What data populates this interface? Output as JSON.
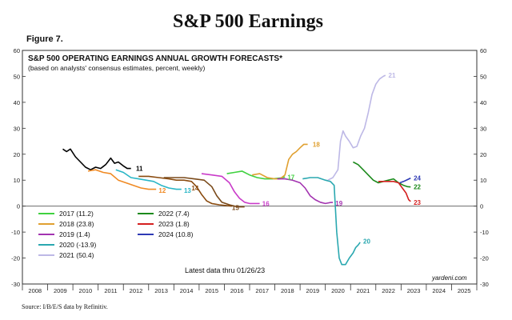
{
  "page": {
    "title": "S&P 500 Earnings",
    "figure_label": "Figure 7.",
    "source": "Source: I/B/E/S data by Refinitiv."
  },
  "chart_data": {
    "type": "line",
    "title": "S&P 500 OPERATING EARNINGS ANNUAL GROWTH FORECASTS*",
    "subtitle": "(based on analysts' consensus estimates, percent, weekly)",
    "annotation": "Latest data thru 01/26/23",
    "brand": "yardeni.com",
    "xlim": [
      2007.5,
      2025.5
    ],
    "ylim": [
      -30,
      60
    ],
    "y_ticks": [
      -30,
      -20,
      -10,
      0,
      10,
      20,
      30,
      40,
      50,
      60
    ],
    "x_ticks": [
      2008,
      2009,
      2010,
      2011,
      2012,
      2013,
      2014,
      2015,
      2016,
      2017,
      2018,
      2019,
      2020,
      2021,
      2022,
      2023,
      2024,
      2025
    ],
    "series": [
      {
        "label": "11",
        "color": "#000000",
        "points": [
          [
            2009.1,
            22.0
          ],
          [
            2009.25,
            21.0
          ],
          [
            2009.4,
            22.0
          ],
          [
            2009.6,
            19.0
          ],
          [
            2009.8,
            17.0
          ],
          [
            2010.0,
            15.0
          ],
          [
            2010.2,
            14.0
          ],
          [
            2010.4,
            15.0
          ],
          [
            2010.6,
            14.5
          ],
          [
            2010.8,
            16.0
          ],
          [
            2011.0,
            18.5
          ],
          [
            2011.15,
            16.5
          ],
          [
            2011.3,
            17.0
          ],
          [
            2011.5,
            15.5
          ],
          [
            2011.65,
            14.5
          ],
          [
            2011.8,
            14.5
          ]
        ]
      },
      {
        "label": "12",
        "color": "#f08a24",
        "points": [
          [
            2010.1,
            13.5
          ],
          [
            2010.4,
            14.0
          ],
          [
            2010.7,
            13.0
          ],
          [
            2011.0,
            12.5
          ],
          [
            2011.3,
            10.0
          ],
          [
            2011.6,
            9.0
          ],
          [
            2011.9,
            8.0
          ],
          [
            2012.2,
            7.0
          ],
          [
            2012.5,
            6.5
          ],
          [
            2012.8,
            6.5
          ]
        ]
      },
      {
        "label": "13",
        "color": "#29b6c6",
        "points": [
          [
            2011.2,
            14.0
          ],
          [
            2011.5,
            13.0
          ],
          [
            2011.8,
            11.0
          ],
          [
            2012.1,
            10.5
          ],
          [
            2012.4,
            10.0
          ],
          [
            2012.7,
            9.5
          ],
          [
            2013.0,
            8.0
          ],
          [
            2013.3,
            7.0
          ],
          [
            2013.6,
            6.5
          ],
          [
            2013.8,
            6.5
          ]
        ]
      },
      {
        "label": "14",
        "color": "#8a4b0f",
        "points": [
          [
            2012.1,
            11.5
          ],
          [
            2012.5,
            11.5
          ],
          [
            2012.9,
            11.0
          ],
          [
            2013.3,
            10.5
          ],
          [
            2013.6,
            10.0
          ],
          [
            2013.9,
            10.0
          ],
          [
            2014.2,
            9.5
          ],
          [
            2014.4,
            7.5
          ],
          [
            2014.6,
            4.5
          ],
          [
            2014.8,
            2.0
          ],
          [
            2015.0,
            1.0
          ],
          [
            2015.3,
            0.5
          ],
          [
            2015.6,
            0.2
          ],
          [
            2015.8,
            0.0
          ]
        ]
      },
      {
        "label": "15",
        "color": "#7a4a1a",
        "points": [
          [
            2013.1,
            11.0
          ],
          [
            2013.5,
            11.0
          ],
          [
            2013.9,
            11.0
          ],
          [
            2014.3,
            10.5
          ],
          [
            2014.7,
            10.0
          ],
          [
            2015.0,
            7.5
          ],
          [
            2015.2,
            4.0
          ],
          [
            2015.4,
            1.5
          ],
          [
            2015.7,
            0.5
          ],
          [
            2015.9,
            0.0
          ],
          [
            2016.1,
            -0.3
          ],
          [
            2016.3,
            -0.3
          ]
        ]
      },
      {
        "label": "16",
        "color": "#c93bc9",
        "points": [
          [
            2014.6,
            12.5
          ],
          [
            2015.0,
            12.0
          ],
          [
            2015.4,
            11.5
          ],
          [
            2015.7,
            9.0
          ],
          [
            2015.9,
            5.5
          ],
          [
            2016.1,
            3.0
          ],
          [
            2016.3,
            1.5
          ],
          [
            2016.5,
            1.0
          ],
          [
            2016.7,
            1.0
          ],
          [
            2016.9,
            1.0
          ]
        ]
      },
      {
        "label": "17",
        "color": "#3fd13f",
        "points": [
          [
            2015.6,
            12.5
          ],
          [
            2015.9,
            13.0
          ],
          [
            2016.2,
            13.5
          ],
          [
            2016.5,
            12.0
          ],
          [
            2016.8,
            11.0
          ],
          [
            2017.1,
            10.5
          ],
          [
            2017.4,
            10.5
          ],
          [
            2017.7,
            10.8
          ],
          [
            2017.9,
            11.2
          ]
        ]
      },
      {
        "label": "18",
        "color": "#e0a030",
        "points": [
          [
            2016.6,
            12.0
          ],
          [
            2016.9,
            12.5
          ],
          [
            2017.2,
            11.0
          ],
          [
            2017.5,
            10.5
          ],
          [
            2017.7,
            10.5
          ],
          [
            2017.9,
            12.0
          ],
          [
            2018.05,
            18.0
          ],
          [
            2018.2,
            20.0
          ],
          [
            2018.35,
            21.0
          ],
          [
            2018.5,
            22.5
          ],
          [
            2018.65,
            23.8
          ],
          [
            2018.8,
            23.8
          ]
        ]
      },
      {
        "label": "19",
        "color": "#a333b0",
        "points": [
          [
            2017.6,
            10.5
          ],
          [
            2017.9,
            10.5
          ],
          [
            2018.2,
            10.0
          ],
          [
            2018.5,
            9.0
          ],
          [
            2018.7,
            7.0
          ],
          [
            2018.9,
            4.0
          ],
          [
            2019.1,
            2.5
          ],
          [
            2019.3,
            1.5
          ],
          [
            2019.5,
            1.0
          ],
          [
            2019.7,
            1.4
          ],
          [
            2019.8,
            1.4
          ]
        ]
      },
      {
        "label": "20",
        "color": "#2aa8b0",
        "points": [
          [
            2018.6,
            10.5
          ],
          [
            2018.9,
            11.0
          ],
          [
            2019.2,
            11.0
          ],
          [
            2019.5,
            10.0
          ],
          [
            2019.7,
            9.5
          ],
          [
            2019.85,
            8.0
          ],
          [
            2019.95,
            -10.0
          ],
          [
            2020.05,
            -20.0
          ],
          [
            2020.15,
            -22.5
          ],
          [
            2020.3,
            -22.5
          ],
          [
            2020.45,
            -20.0
          ],
          [
            2020.6,
            -18.0
          ],
          [
            2020.7,
            -16.0
          ],
          [
            2020.8,
            -15.0
          ],
          [
            2020.88,
            -13.9
          ]
        ]
      },
      {
        "label": "21",
        "color": "#bdb8e6",
        "points": [
          [
            2019.6,
            10.0
          ],
          [
            2019.8,
            11.0
          ],
          [
            2020.0,
            14.0
          ],
          [
            2020.1,
            25.0
          ],
          [
            2020.2,
            29.0
          ],
          [
            2020.3,
            27.0
          ],
          [
            2020.45,
            25.0
          ],
          [
            2020.6,
            22.5
          ],
          [
            2020.75,
            23.0
          ],
          [
            2020.9,
            27.0
          ],
          [
            2021.05,
            30.0
          ],
          [
            2021.2,
            36.0
          ],
          [
            2021.35,
            43.0
          ],
          [
            2021.5,
            47.0
          ],
          [
            2021.65,
            49.0
          ],
          [
            2021.8,
            50.0
          ],
          [
            2021.88,
            50.4
          ]
        ]
      },
      {
        "label": "22",
        "color": "#1c8a1c",
        "points": [
          [
            2020.6,
            17.0
          ],
          [
            2020.8,
            16.0
          ],
          [
            2021.0,
            14.0
          ],
          [
            2021.2,
            12.0
          ],
          [
            2021.4,
            10.0
          ],
          [
            2021.6,
            9.0
          ],
          [
            2021.8,
            9.5
          ],
          [
            2022.0,
            10.0
          ],
          [
            2022.2,
            10.5
          ],
          [
            2022.4,
            9.0
          ],
          [
            2022.6,
            8.0
          ],
          [
            2022.75,
            7.5
          ],
          [
            2022.88,
            7.4
          ]
        ]
      },
      {
        "label": "23",
        "color": "#d42020",
        "points": [
          [
            2021.6,
            9.5
          ],
          [
            2021.8,
            9.5
          ],
          [
            2022.0,
            9.5
          ],
          [
            2022.2,
            9.5
          ],
          [
            2022.4,
            9.0
          ],
          [
            2022.55,
            7.0
          ],
          [
            2022.7,
            5.0
          ],
          [
            2022.8,
            2.5
          ],
          [
            2022.88,
            1.8
          ]
        ]
      },
      {
        "label": "24",
        "color": "#2e3ab5",
        "points": [
          [
            2022.45,
            9.0
          ],
          [
            2022.6,
            9.5
          ],
          [
            2022.75,
            10.2
          ],
          [
            2022.88,
            10.8
          ]
        ]
      }
    ],
    "series_labels": [
      {
        "text": "11",
        "x": 2012.0,
        "y": 14.5,
        "color": "#000000"
      },
      {
        "text": "12",
        "x": 2012.9,
        "y": 6.0,
        "color": "#f08a24"
      },
      {
        "text": "13",
        "x": 2013.9,
        "y": 6.0,
        "color": "#29b6c6"
      },
      {
        "text": "14",
        "x": 2014.2,
        "y": 7.0,
        "color": "#8a4b0f"
      },
      {
        "text": "15",
        "x": 2015.8,
        "y": -0.5,
        "color": "#7a4a1a"
      },
      {
        "text": "16",
        "x": 2017.0,
        "y": 1.0,
        "color": "#c93bc9"
      },
      {
        "text": "17",
        "x": 2018.0,
        "y": 11.2,
        "color": "#3fd13f"
      },
      {
        "text": "18",
        "x": 2019.0,
        "y": 23.8,
        "color": "#e0a030"
      },
      {
        "text": "19",
        "x": 2019.9,
        "y": 1.2,
        "color": "#a333b0"
      },
      {
        "text": "20",
        "x": 2021.0,
        "y": -13.5,
        "color": "#2aa8b0"
      },
      {
        "text": "21",
        "x": 2022.0,
        "y": 50.4,
        "color": "#bdb8e6"
      },
      {
        "text": "22",
        "x": 2023.0,
        "y": 7.4,
        "color": "#1c8a1c"
      },
      {
        "text": "23",
        "x": 2023.0,
        "y": 1.4,
        "color": "#d42020"
      },
      {
        "text": "24",
        "x": 2023.0,
        "y": 10.8,
        "color": "#2e3ab5"
      }
    ],
    "legend": [
      {
        "label": "2017 (11.2)",
        "color": "#3fd13f"
      },
      {
        "label": "2018 (23.8)",
        "color": "#e0a030"
      },
      {
        "label": "2019 (1.4)",
        "color": "#a333b0"
      },
      {
        "label": "2020 (-13.9)",
        "color": "#2aa8b0"
      },
      {
        "label": "2021 (50.4)",
        "color": "#bdb8e6"
      },
      {
        "label": "2022 (7.4)",
        "color": "#1c8a1c"
      },
      {
        "label": "2023 (1.8)",
        "color": "#d42020"
      },
      {
        "label": "2024 (10.8)",
        "color": "#2e3ab5"
      }
    ]
  }
}
